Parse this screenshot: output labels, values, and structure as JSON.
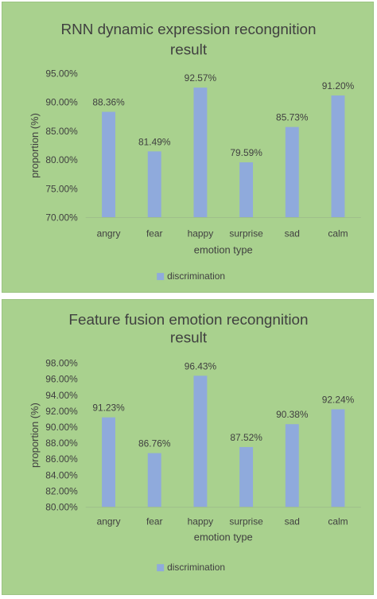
{
  "colors": {
    "panel_bg": "#a9d18e",
    "bar": "#8faadc",
    "text": "#404040",
    "grid": "#bcd9a8",
    "axis": "#9fbf8a"
  },
  "chart_data": [
    {
      "type": "bar",
      "title_lines": [
        "RNN dynamic expression recongnition",
        "result"
      ],
      "categories": [
        "angry",
        "fear",
        "happy",
        "surprise",
        "sad",
        "calm"
      ],
      "series": [
        {
          "name": "discrimination",
          "values": [
            88.36,
            81.49,
            92.57,
            79.59,
            85.73,
            91.2
          ]
        }
      ],
      "data_labels": [
        "88.36%",
        "81.49%",
        "92.57%",
        "79.59%",
        "85.73%",
        "91.20%"
      ],
      "ylim": [
        70,
        95
      ],
      "yticks": [
        "70.00%",
        "75.00%",
        "80.00%",
        "85.00%",
        "90.00%",
        "95.00%"
      ],
      "xlabel": "emotion type",
      "ylabel": "proportion (%)",
      "legend": "bottom",
      "grid": false
    },
    {
      "type": "bar",
      "title_lines": [
        "Feature fusion emotion recongnition",
        "result"
      ],
      "categories": [
        "angry",
        "fear",
        "happy",
        "surprise",
        "sad",
        "calm"
      ],
      "series": [
        {
          "name": "discrimination",
          "values": [
            91.23,
            86.76,
            96.43,
            87.52,
            90.38,
            92.24
          ]
        }
      ],
      "data_labels": [
        "91.23%",
        "86.76%",
        "96.43%",
        "87.52%",
        "90.38%",
        "92.24%"
      ],
      "ylim": [
        80,
        98
      ],
      "yticks": [
        "80.00%",
        "82.00%",
        "84.00%",
        "86.00%",
        "88.00%",
        "90.00%",
        "92.00%",
        "94.00%",
        "96.00%",
        "98.00%"
      ],
      "xlabel": "emotion type",
      "ylabel": "proportion (%)",
      "legend": "bottom",
      "grid": false
    }
  ]
}
